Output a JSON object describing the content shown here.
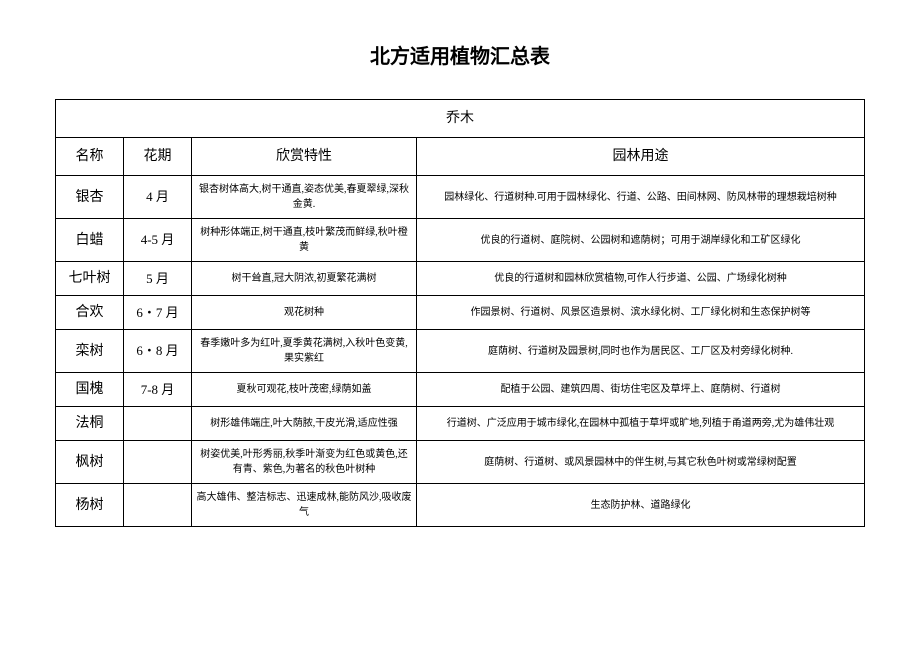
{
  "title": "北方适用植物汇总表",
  "category": "乔木",
  "headers": {
    "name": "名称",
    "period": "花期",
    "features": "欣赏特性",
    "usage": "园林用途"
  },
  "rows": [
    {
      "name": "银杏",
      "period": "4 月",
      "features": "银杏树体高大,树干通直,姿态优美,春夏翠绿,深秋金黄.",
      "usage": "园林绿化、行道树种.可用于园林绿化、行道、公路、田间林网、防风林带的理想栽培树种"
    },
    {
      "name": "白蜡",
      "period": "4-5 月",
      "features": "树种形体端正,树干通直,枝叶繁茂而鲜绿,秋叶橙黄",
      "usage": "优良的行道树、庭院树、公园树和遮荫树；可用于湖岸绿化和工矿区绿化"
    },
    {
      "name": "七叶树",
      "period": "5 月",
      "features": "树干耸直,冠大阴浓,初夏繁花满树",
      "usage": "优良的行道树和园林欣赏植物,可作人行步道、公园、广场绿化树种"
    },
    {
      "name": "合欢",
      "period": "6・7 月",
      "features": "观花树种",
      "usage": "作园景树、行道树、风景区造景树、滨水绿化树、工厂绿化树和生态保护树等"
    },
    {
      "name": "栾树",
      "period": "6・8 月",
      "features": "春季嫩叶多为红叶,夏季黄花满树,入秋叶色变黄,果实紫红",
      "usage": "庭荫树、行道树及园景树,同时也作为居民区、工厂区及村旁绿化树种."
    },
    {
      "name": "国槐",
      "period": "7-8 月",
      "features": "夏秋可观花,枝叶茂密,绿荫如盖",
      "usage": "配植于公园、建筑四周、街坊住宅区及草坪上、庭荫树、行道树"
    },
    {
      "name": "法桐",
      "period": "",
      "features": "树形雄伟端庄,叶大荫脓,干皮光滑,适应性强",
      "usage": "行道树、广泛应用于城市绿化,在园林中孤植于草坪或旷地,列植于甬道两旁,尤为雄伟壮观"
    },
    {
      "name": "枫树",
      "period": "",
      "features": "树姿优美,叶形秀丽,秋季叶渐变为红色或黄色,还有青、紫色,为著名的秋色叶树种",
      "usage": "庭荫树、行道树、或风景园林中的伴生树,与其它秋色叶树或常绿树配置"
    },
    {
      "name": "杨树",
      "period": "",
      "features": "高大雄伟、整洁标志、迅速成林,能防风沙,吸收废气",
      "usage": "生态防护林、道路绿化"
    }
  ],
  "style": {
    "background_color": "#ffffff",
    "border_color": "#000000",
    "title_fontsize": 20,
    "header_fontsize": 14,
    "body_fontsize": 11,
    "name_fontsize": 14,
    "period_fontsize": 13
  }
}
